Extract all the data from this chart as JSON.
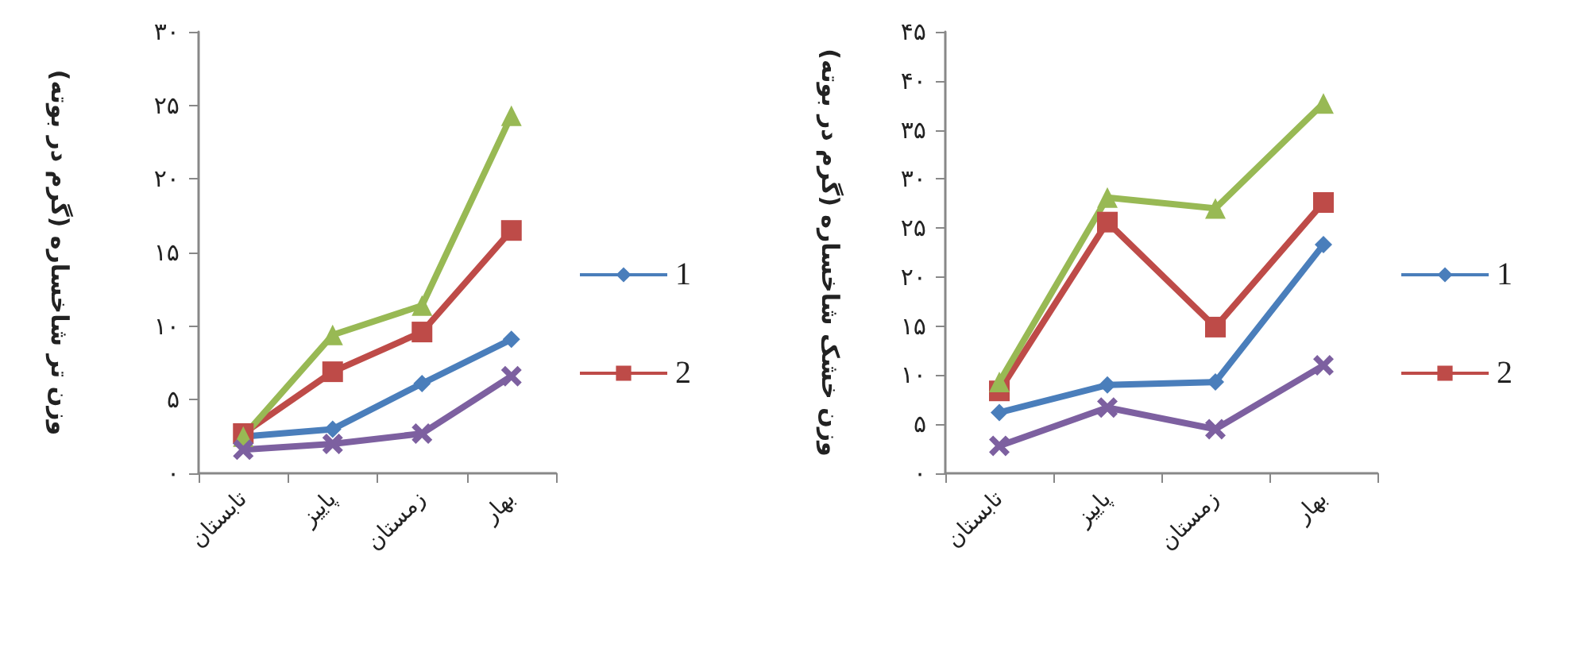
{
  "chart_data": [
    {
      "type": "line",
      "ylabel": "وزن تر شاخساره (گرم در بوته)",
      "categories": [
        "تابستان",
        "پاییز",
        "زمستان",
        "بهار"
      ],
      "series": [
        {
          "name": "1",
          "color": "#4a7ebb",
          "marker": "diamond",
          "values": [
            2.5,
            3.0,
            6.1,
            9.1
          ]
        },
        {
          "name": "2",
          "color": "#be4b48",
          "marker": "square",
          "values": [
            2.7,
            6.9,
            9.6,
            16.5
          ]
        },
        {
          "color": "#98b954",
          "marker": "triangle",
          "values": [
            2.5,
            9.4,
            11.4,
            24.3
          ]
        },
        {
          "color": "#7d60a0",
          "marker": "cross",
          "values": [
            1.6,
            2.0,
            2.7,
            6.6
          ]
        }
      ],
      "ylim": [
        0,
        30
      ],
      "yticks": [
        {
          "value": 0,
          "label": "۰"
        },
        {
          "value": 5,
          "label": "۵"
        },
        {
          "value": 10,
          "label": "۱۰"
        },
        {
          "value": 15,
          "label": "۱۵"
        },
        {
          "value": 20,
          "label": "۲۰"
        },
        {
          "value": 25,
          "label": "۲۵"
        },
        {
          "value": 30,
          "label": "۳۰"
        }
      ],
      "grid": false,
      "legend": "right"
    },
    {
      "type": "line",
      "ylabel": "وزن خشک شاخساره (گرم در بوته)",
      "categories": [
        "تابستان",
        "پاییز",
        "زمستان",
        "بهار"
      ],
      "series": [
        {
          "name": "1",
          "color": "#4a7ebb",
          "marker": "diamond",
          "values": [
            6.2,
            9.0,
            9.3,
            23.3
          ]
        },
        {
          "name": "2",
          "color": "#be4b48",
          "marker": "square",
          "values": [
            8.4,
            25.6,
            14.9,
            27.6
          ]
        },
        {
          "color": "#98b954",
          "marker": "triangle",
          "values": [
            9.3,
            28.1,
            27.0,
            37.7
          ]
        },
        {
          "color": "#7d60a0",
          "marker": "cross",
          "values": [
            2.8,
            6.7,
            4.5,
            11.0
          ]
        }
      ],
      "ylim": [
        0,
        45
      ],
      "yticks": [
        {
          "value": 0,
          "label": "۰"
        },
        {
          "value": 5,
          "label": "۵"
        },
        {
          "value": 10,
          "label": "۱۰"
        },
        {
          "value": 15,
          "label": "۱۵"
        },
        {
          "value": 20,
          "label": "۲۰"
        },
        {
          "value": 25,
          "label": "۲۵"
        },
        {
          "value": 30,
          "label": "۳۰"
        },
        {
          "value": 35,
          "label": "۳۵"
        },
        {
          "value": 40,
          "label": "۴۰"
        },
        {
          "value": 45,
          "label": "۴۵"
        }
      ],
      "grid": false,
      "legend": "right"
    }
  ]
}
